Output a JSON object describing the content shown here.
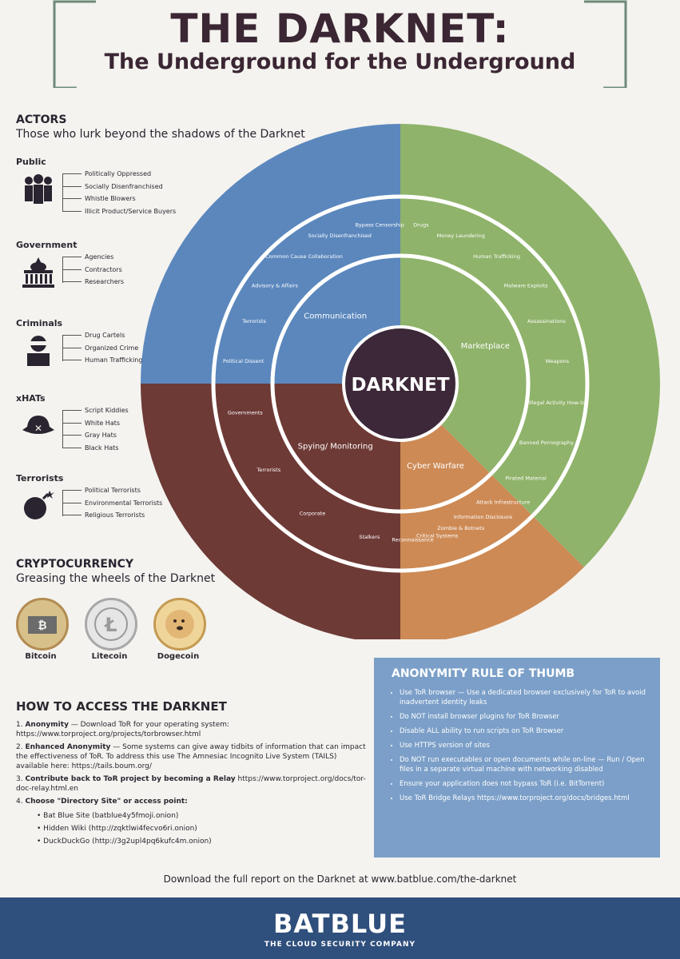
{
  "title": "THE DARKNET:",
  "subtitle": "The Underground for the Underground",
  "actors": {
    "heading": "ACTORS",
    "subheading": "Those who lurk beyond the shadows of the Darknet",
    "groups": [
      {
        "name": "Public",
        "icon": "people-icon",
        "items": [
          "Politically Oppressed",
          "Socially Disenfranchised",
          "Whistle Blowers",
          "Illicit Product/Service Buyers"
        ]
      },
      {
        "name": "Government",
        "icon": "capitol-icon",
        "items": [
          "Agencies",
          "Contractors",
          "Researchers"
        ]
      },
      {
        "name": "Criminals",
        "icon": "masked-criminal-icon",
        "items": [
          "Drug Cartels",
          "Organized Crime",
          "Human Trafficking"
        ]
      },
      {
        "name": "xHATs",
        "icon": "hat-icon",
        "items": [
          "Script Kiddies",
          "White Hats",
          "Gray Hats",
          "Black Hats"
        ]
      },
      {
        "name": "Terrorists",
        "icon": "bomb-icon",
        "items": [
          "Political Terrorists",
          "Environmental Terrorists",
          "Religious Terrorists"
        ]
      }
    ]
  },
  "wheel": {
    "center": "DARKNET",
    "segments": [
      {
        "name": "Communication",
        "color": "#5b87bd",
        "items": [
          "Political Dissent",
          "Terrorists",
          "Advisory & Affairs",
          "Common Cause Collaboration",
          "Socially Disenfranchised",
          "Bypass Censorship"
        ]
      },
      {
        "name": "Marketplace",
        "color": "#8fb36a",
        "items": [
          "Drugs",
          "Money Laundering",
          "Human Trafficking",
          "Malware Exploits",
          "Assassinations",
          "Weapons",
          "Illegal Activity How-to",
          "Banned Pornography",
          "Pirated Material"
        ]
      },
      {
        "name": "Cyber Warfare",
        "color": "#cd8a55",
        "items": [
          "Attack Infrastructure",
          "Information Disclosure",
          "Zombie & Botnets",
          "Critical Systems",
          "Reconnaissance"
        ]
      },
      {
        "name": "Spying/ Monitoring",
        "color": "#6e3a36",
        "items": [
          "Stalkers",
          "Corporate",
          "Terrorists",
          "Governments"
        ]
      }
    ]
  },
  "crypto": {
    "heading": "CRYPTOCURRENCY",
    "subheading": "Greasing the wheels of the Darknet",
    "coins": [
      {
        "name": "Bitcoin",
        "color": "#c8a064"
      },
      {
        "name": "Litecoin",
        "color": "#c9c9c9"
      },
      {
        "name": "Dogecoin",
        "color": "#d8b16a"
      }
    ]
  },
  "howto": {
    "heading": "HOW TO ACCESS THE DARKNET",
    "steps": [
      {
        "num": "1.",
        "bold": "Anonymity",
        "text": " — Download ToR for your operating system: https://www.torproject.org/projects/torbrowser.html"
      },
      {
        "num": "2.",
        "bold": "Enhanced Anonymity",
        "text": " — Some systems can give away tidbits of information that can impact the effectiveness of ToR. To address this use The Amnesiac Incognito Live System (TAILS) available here: https://tails.boum.org/"
      },
      {
        "num": "3.",
        "bold": "Contribute back to ToR project by becoming a Relay",
        "text": " https://www.torproject.org/docs/tor-doc-relay.html.en"
      },
      {
        "num": "4.",
        "bold": "Choose \"Directory Site\" or access point:",
        "text": ""
      }
    ],
    "sites": [
      "Bat Blue Site (batblue4y5fmoji.onion)",
      "Hidden Wiki (http://zqktlwi4fecvo6ri.onion)",
      "DuckDuckGo (http://3g2upl4pq6kufc4m.onion)"
    ]
  },
  "rule": {
    "heading": "ANONYMITY RULE OF THUMB",
    "items": [
      "Use ToR browser — Use a dedicated browser exclusively for ToR to avoid inadvertent identity leaks",
      "Do NOT install browser plugins for ToR Browser",
      "Disable ALL ability to run scripts on ToR Browser",
      "Use HTTPS version of sites",
      "Do NOT run executables or open documents while on-line — Run / Open files in a separate virtual machine with networking disabled",
      "Ensure your application does not bypass ToR (i.e. BitTorrent)",
      "Use ToR Bridge Relays https://www.torproject.org/docs/bridges.html"
    ]
  },
  "download": "Download the full report on the Darknet at www.batblue.com/the-darknet",
  "footer": {
    "brand": "BATBLUE",
    "tagline": "THE CLOUD SECURITY COMPANY",
    "color": "#2f4f7c"
  }
}
